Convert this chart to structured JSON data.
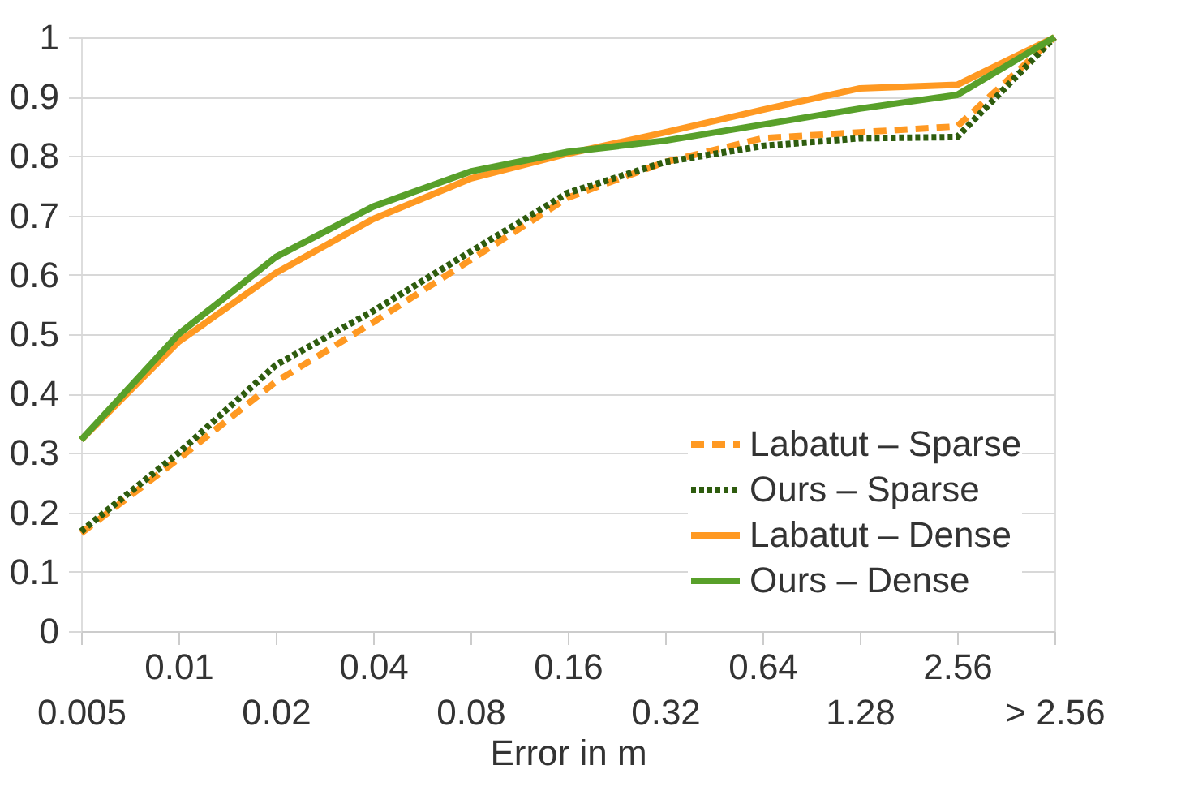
{
  "chart_data": {
    "type": "line",
    "xlabel": "Error in m",
    "categories": [
      "0.005",
      "0.01",
      "0.02",
      "0.04",
      "0.08",
      "0.16",
      "0.32",
      "0.64",
      "1.28",
      "2.56",
      "> 2.56"
    ],
    "series": [
      {
        "name": "Labatut – Sparse",
        "color": "#ff9922",
        "line_style": "dashed",
        "values": [
          0.165,
          0.29,
          0.42,
          0.52,
          0.625,
          0.73,
          0.79,
          0.83,
          0.84,
          0.85,
          1.0
        ]
      },
      {
        "name": "Ours – Sparse",
        "color": "#2e5c0e",
        "line_style": "dotted",
        "values": [
          0.168,
          0.3,
          0.448,
          0.539,
          0.639,
          0.738,
          0.79,
          0.817,
          0.83,
          0.832,
          1.0
        ]
      },
      {
        "name": "Labatut – Dense",
        "color": "#ff9922",
        "line_style": "solid",
        "values": [
          0.322,
          0.487,
          0.603,
          0.694,
          0.762,
          0.804,
          0.84,
          0.878,
          0.914,
          0.92,
          1.0
        ]
      },
      {
        "name": "Ours – Dense",
        "color": "#58a02a",
        "line_style": "solid",
        "values": [
          0.322,
          0.5,
          0.63,
          0.715,
          0.774,
          0.807,
          0.826,
          0.853,
          0.88,
          0.903,
          1.0
        ]
      }
    ],
    "ylim": [
      0,
      1
    ],
    "yticks": [
      0,
      0.1,
      0.2,
      0.3,
      0.4,
      0.5,
      0.6,
      0.7,
      0.8,
      0.9,
      1
    ],
    "grid": "y",
    "legend": "bottom right",
    "marker": "none"
  }
}
